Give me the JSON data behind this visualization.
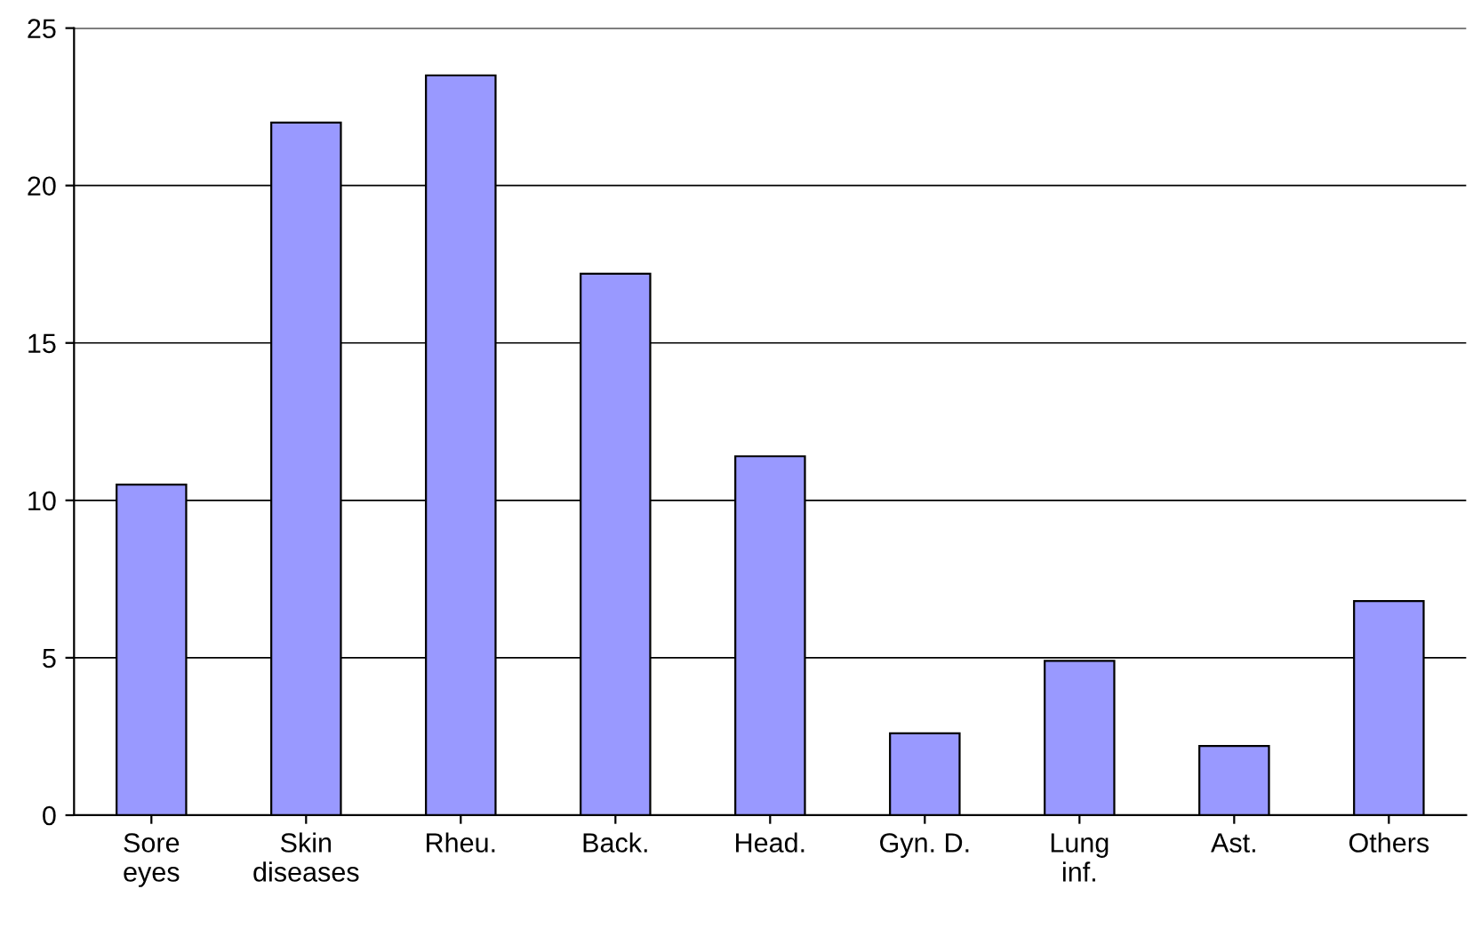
{
  "chart_data": {
    "type": "bar",
    "categories": [
      "Sore\neyes",
      "Skin\ndiseases",
      "Rheu.",
      "Back.",
      "Head.",
      "Gyn. D.",
      "Lung\ninf.",
      "Ast.",
      "Others"
    ],
    "values": [
      10.5,
      22,
      23.5,
      17.2,
      11.4,
      2.6,
      4.9,
      2.2,
      6.8
    ],
    "color": "#9999ff",
    "ylim": [
      0,
      25
    ],
    "yticks": [
      0,
      5,
      10,
      15,
      20,
      25
    ],
    "grid": "y"
  }
}
